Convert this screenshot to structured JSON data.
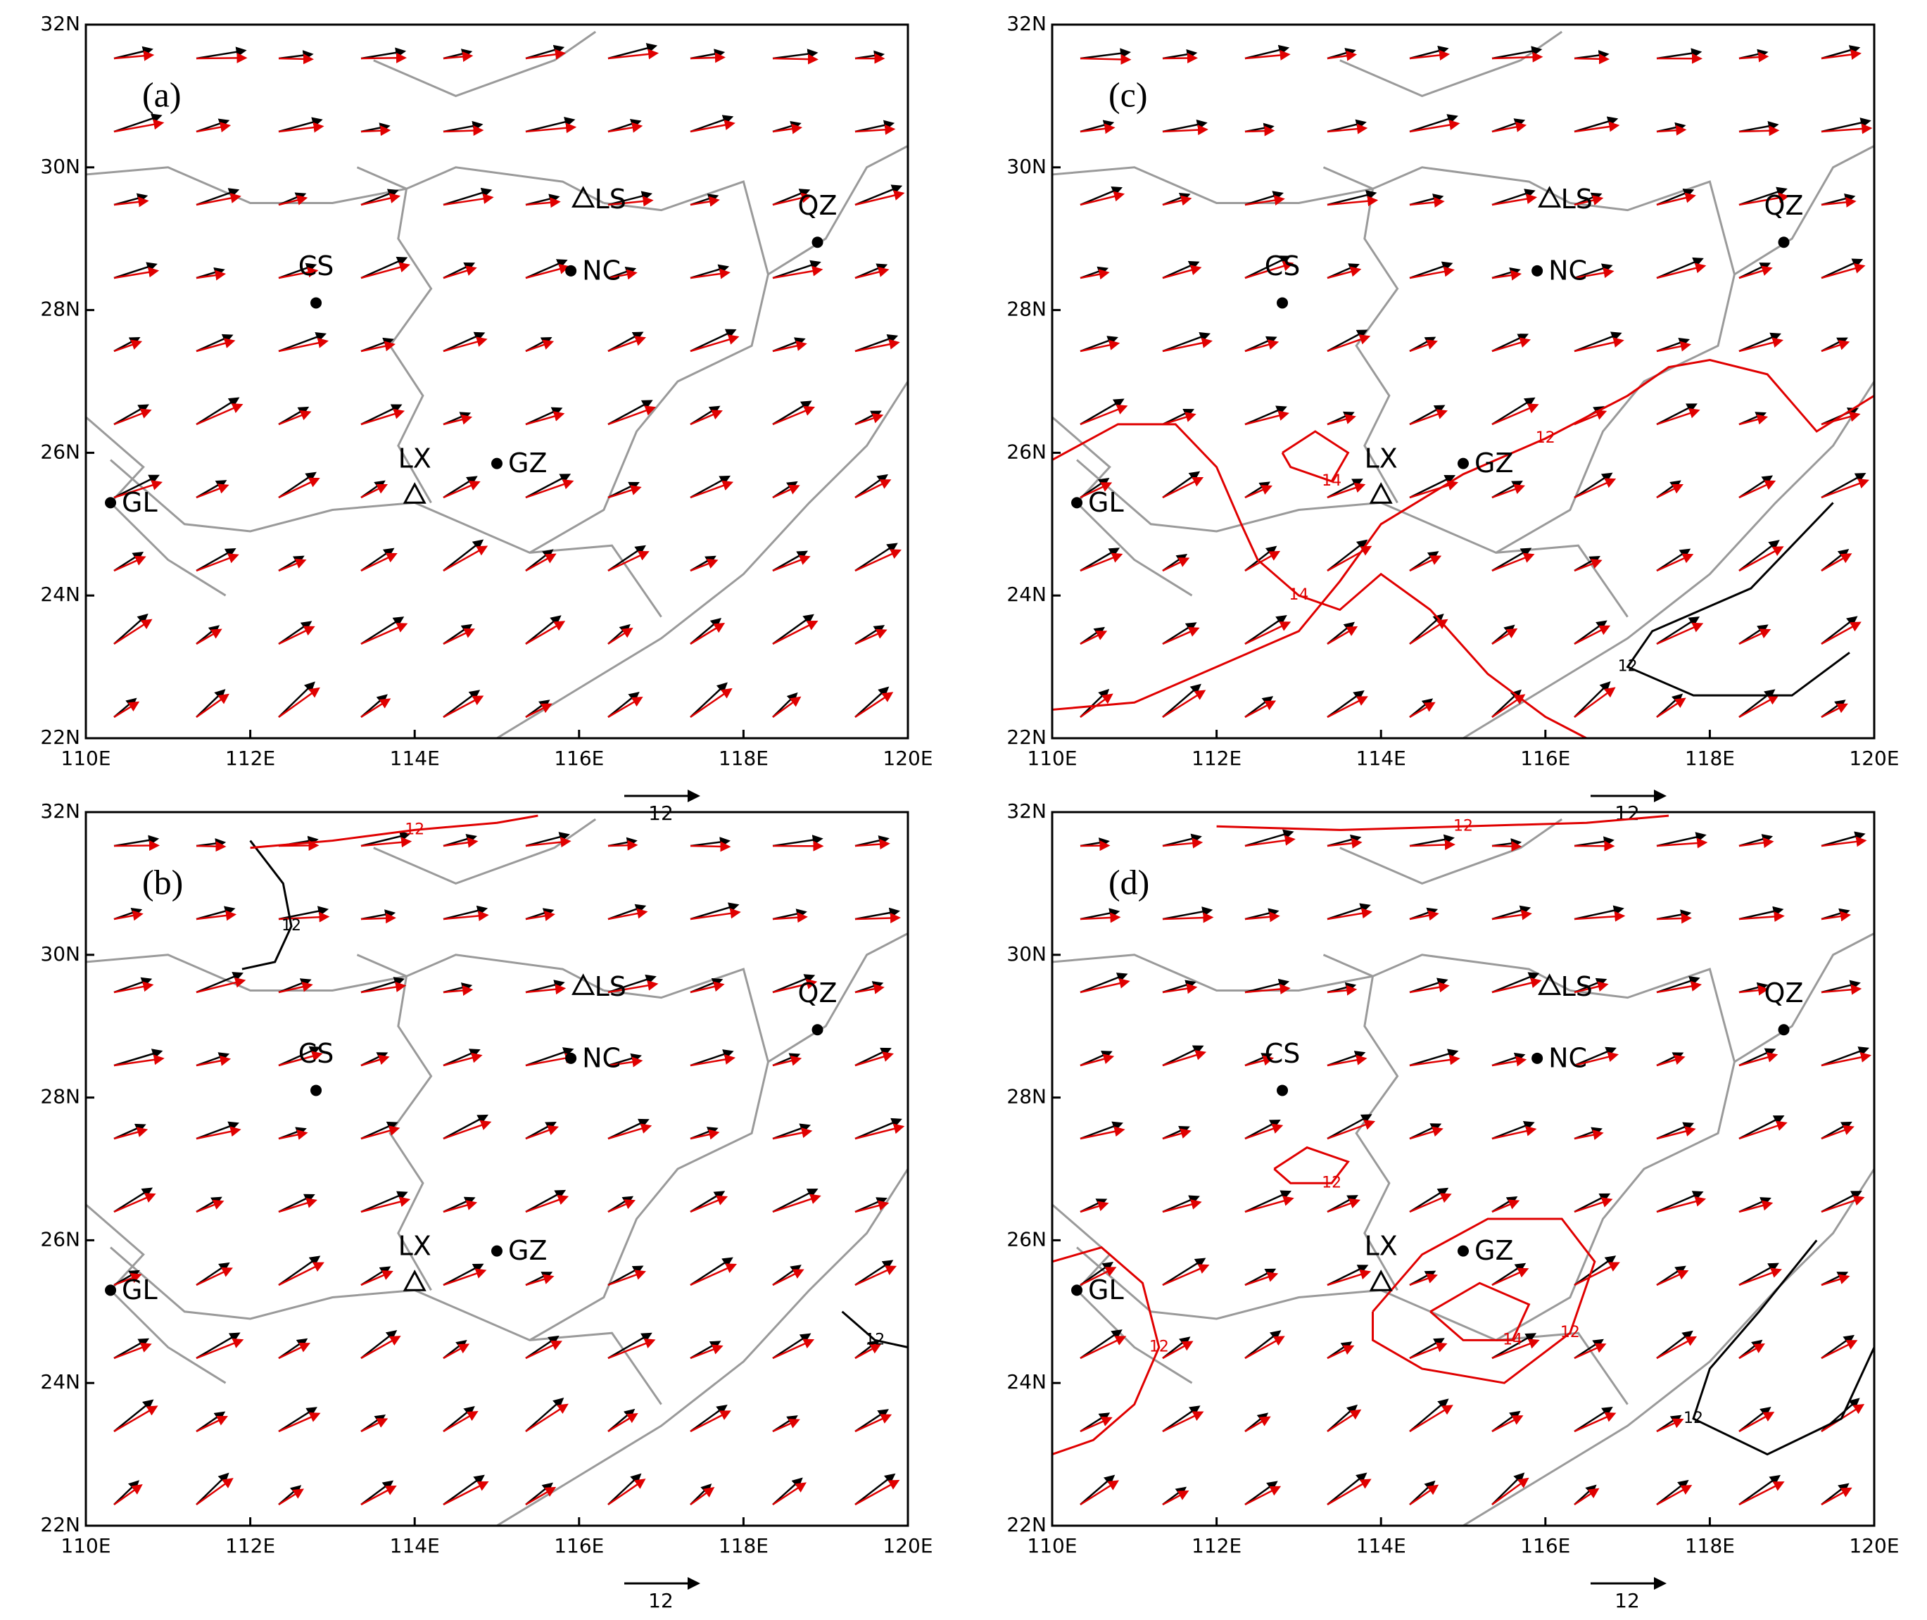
{
  "xlim": [
    110,
    120
  ],
  "ylim": [
    22,
    32
  ],
  "xticks": [
    {
      "value": 110,
      "label": "110E"
    },
    {
      "value": 112,
      "label": "112E"
    },
    {
      "value": 114,
      "label": "114E"
    },
    {
      "value": 116,
      "label": "116E"
    },
    {
      "value": 118,
      "label": "118E"
    },
    {
      "value": 120,
      "label": "120E"
    }
  ],
  "yticks": [
    {
      "value": 22,
      "label": "22N"
    },
    {
      "value": 24,
      "label": "24N"
    },
    {
      "value": 26,
      "label": "26N"
    },
    {
      "value": 28,
      "label": "28N"
    },
    {
      "value": 30,
      "label": "30N"
    },
    {
      "value": 32,
      "label": "32N"
    }
  ],
  "cities": [
    {
      "label": "CS",
      "lon": 112.8,
      "lat": 28.1,
      "marker": "dot",
      "side": "above"
    },
    {
      "label": "NC",
      "lon": 115.9,
      "lat": 28.55,
      "marker": "dot",
      "side": "right"
    },
    {
      "label": "LS",
      "lon": 116.05,
      "lat": 29.55,
      "marker": "triangle",
      "side": "right"
    },
    {
      "label": "QZ",
      "lon": 118.9,
      "lat": 28.95,
      "marker": "dot",
      "side": "above"
    },
    {
      "label": "LX",
      "lon": 114.0,
      "lat": 25.4,
      "marker": "triangle",
      "side": "above"
    },
    {
      "label": "GZ",
      "lon": 115.0,
      "lat": 25.85,
      "marker": "dot",
      "side": "right"
    },
    {
      "label": "GL",
      "lon": 110.3,
      "lat": 25.3,
      "marker": "dot",
      "side": "right"
    }
  ],
  "panels": [
    {
      "label": "(a)",
      "reference_vector": 12,
      "contours": []
    },
    {
      "label": "(b)",
      "reference_vector": 12,
      "contours": [
        {
          "level": 12,
          "color": "#000000",
          "lon": [
            112.0,
            112.4,
            112.5,
            112.3,
            111.9
          ],
          "lat": [
            31.6,
            31.0,
            30.4,
            29.9,
            29.8
          ]
        },
        {
          "level": 12,
          "color": "#e00000",
          "lon": [
            112.0,
            113.0,
            114.0,
            115.0,
            115.5
          ],
          "lat": [
            31.5,
            31.6,
            31.75,
            31.85,
            31.95
          ]
        },
        {
          "level": 12,
          "color": "#000000",
          "lon": [
            119.2,
            119.6,
            120.0
          ],
          "lat": [
            25.0,
            24.6,
            24.5
          ]
        }
      ]
    },
    {
      "label": "(c)",
      "reference_vector": 12,
      "contours": [
        {
          "level": 12,
          "color": "#e00000",
          "lon": [
            110.0,
            111.0,
            112.0,
            113.0,
            113.5,
            114.0,
            115.0,
            116.0,
            117.0,
            117.5,
            118.0,
            118.7,
            119.3,
            120.0
          ],
          "lat": [
            22.4,
            22.5,
            23.0,
            23.5,
            24.2,
            25.0,
            25.7,
            26.2,
            26.8,
            27.2,
            27.3,
            27.1,
            26.3,
            26.8
          ]
        },
        {
          "level": 14,
          "color": "#e00000",
          "lon": [
            110.0,
            110.8,
            111.5,
            112.0,
            112.3,
            112.5,
            113.0,
            113.5,
            114.0,
            114.6,
            115.3,
            116.0,
            116.5
          ],
          "lat": [
            25.9,
            26.4,
            26.4,
            25.8,
            25.0,
            24.5,
            24.0,
            23.8,
            24.3,
            23.8,
            22.9,
            22.3,
            22.0
          ]
        },
        {
          "level": 14,
          "color": "#e00000",
          "lon": [
            112.8,
            113.2,
            113.6,
            113.4,
            112.9,
            112.8
          ],
          "lat": [
            26.0,
            26.3,
            26.0,
            25.6,
            25.8,
            26.0
          ]
        },
        {
          "level": 12,
          "color": "#000000",
          "lon": [
            119.5,
            118.5,
            117.3,
            117.0,
            117.8,
            119.0,
            119.7
          ],
          "lat": [
            25.3,
            24.1,
            23.5,
            23.0,
            22.6,
            22.6,
            23.2
          ]
        }
      ]
    },
    {
      "label": "(d)",
      "reference_vector": 12,
      "contours": [
        {
          "level": 12,
          "color": "#e00000",
          "lon": [
            112.7,
            113.1,
            113.6,
            113.4,
            112.9,
            112.7
          ],
          "lat": [
            27.0,
            27.3,
            27.1,
            26.8,
            26.8,
            27.0
          ]
        },
        {
          "level": 12,
          "color": "#e00000",
          "lon": [
            113.9,
            114.5,
            115.3,
            116.2,
            116.6,
            116.3,
            115.5,
            114.5,
            113.9,
            113.9
          ],
          "lat": [
            25.0,
            25.8,
            26.3,
            26.3,
            25.7,
            24.7,
            24.0,
            24.2,
            24.6,
            25.0
          ]
        },
        {
          "level": 14,
          "color": "#e00000",
          "lon": [
            114.6,
            115.2,
            115.8,
            115.6,
            115.0,
            114.6
          ],
          "lat": [
            25.0,
            25.4,
            25.1,
            24.6,
            24.6,
            25.0
          ]
        },
        {
          "level": 12,
          "color": "#e00000",
          "lon": [
            110.0,
            110.6,
            111.1,
            111.3,
            111.0,
            110.5,
            110.0
          ],
          "lat": [
            25.7,
            25.9,
            25.4,
            24.5,
            23.7,
            23.2,
            23.0
          ]
        },
        {
          "level": 12,
          "color": "#000000",
          "lon": [
            119.3,
            118.6,
            118.0,
            117.8,
            118.7,
            119.6,
            120.0
          ],
          "lat": [
            26.0,
            25.0,
            24.2,
            23.5,
            23.0,
            23.5,
            24.5
          ]
        },
        {
          "level": 12,
          "color": "#e00000",
          "lon": [
            112.0,
            113.5,
            115.0,
            116.5,
            117.5
          ],
          "lat": [
            31.8,
            31.75,
            31.8,
            31.85,
            31.95
          ]
        }
      ]
    }
  ]
}
